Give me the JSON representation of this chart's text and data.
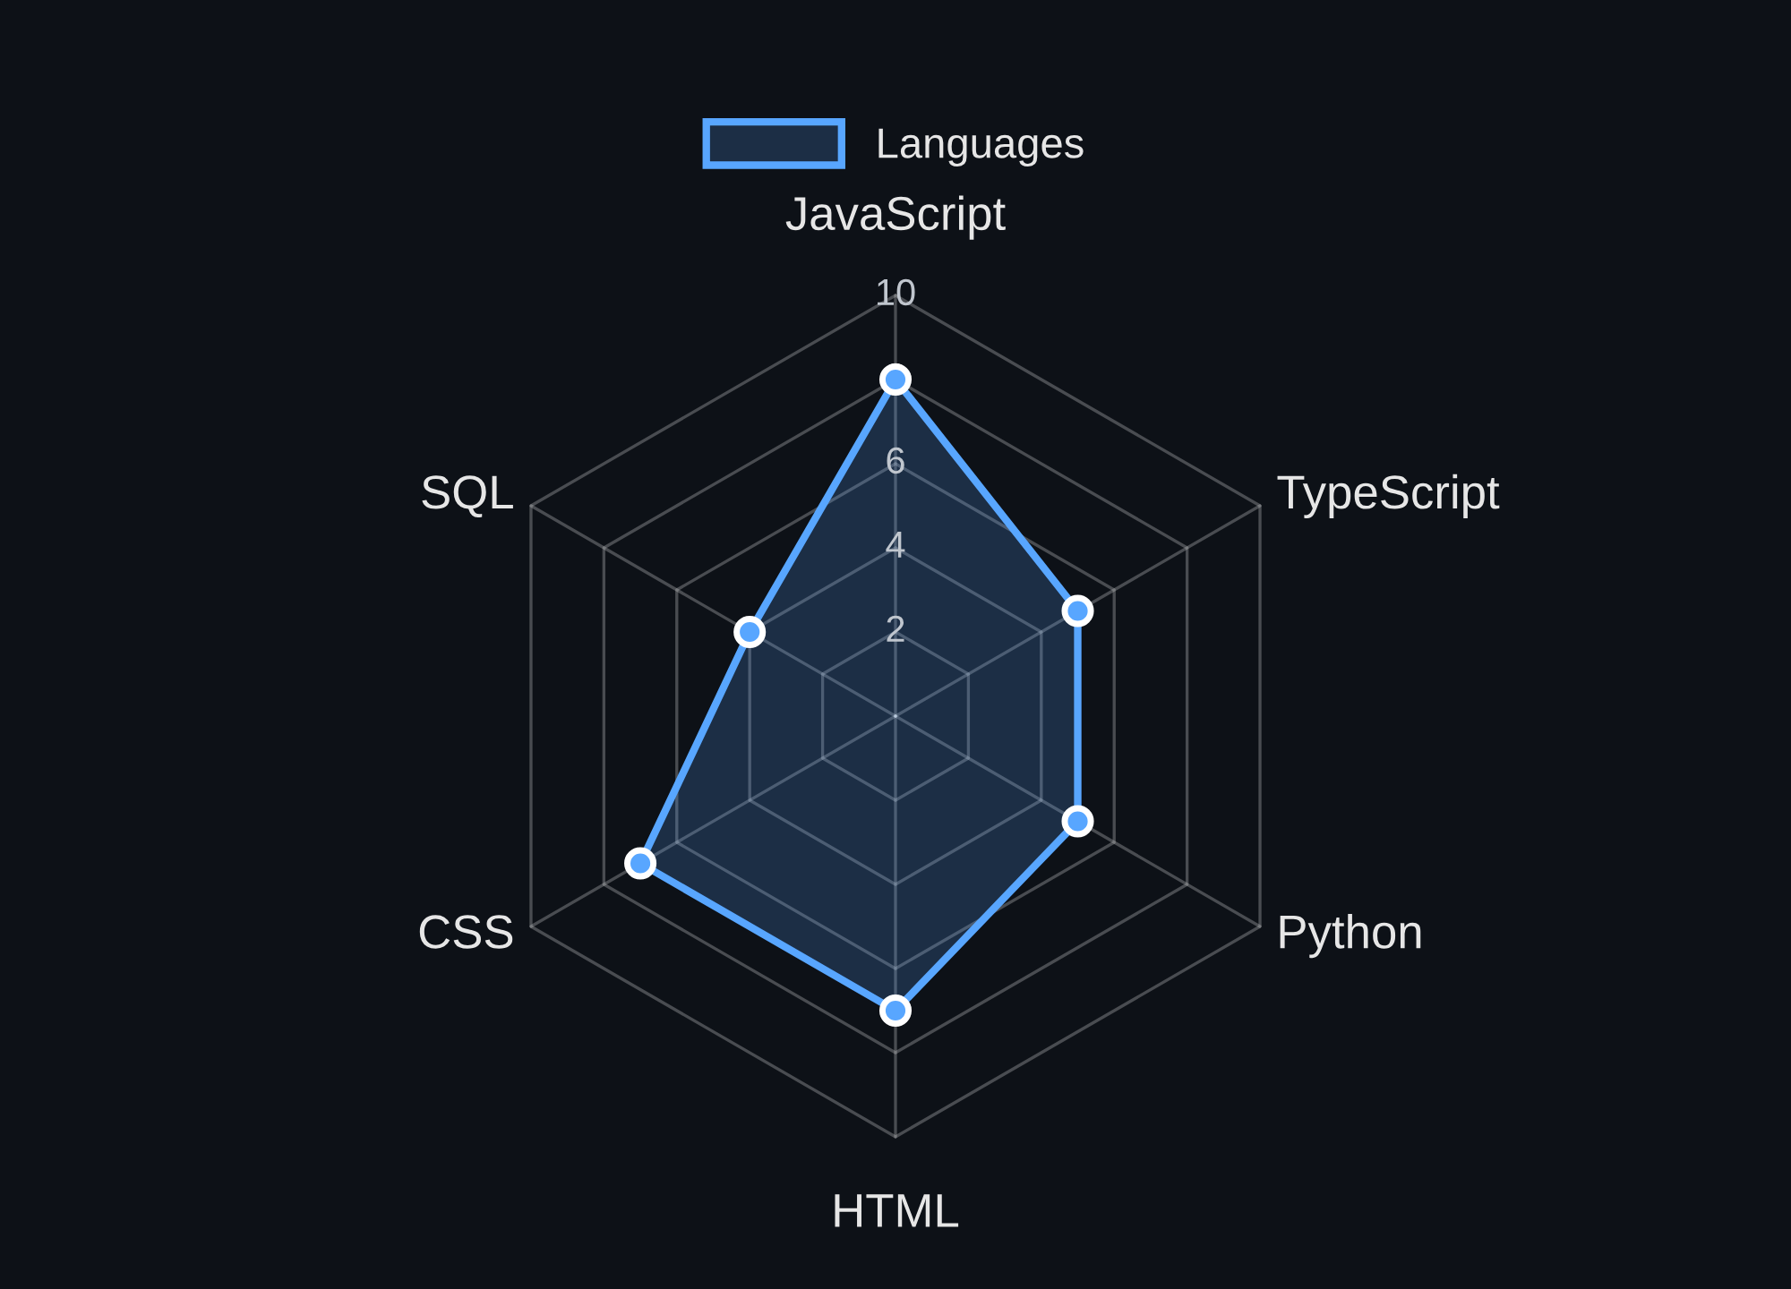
{
  "chart_data": {
    "type": "radar",
    "categories": [
      "JavaScript",
      "TypeScript",
      "Python",
      "HTML",
      "CSS",
      "SQL"
    ],
    "series": [
      {
        "name": "Languages",
        "color": "#58a6ff",
        "values": [
          8,
          5,
          5,
          7,
          7,
          4
        ]
      }
    ],
    "ylim": [
      0,
      10
    ],
    "yticks": [
      2,
      4,
      6,
      8,
      10
    ],
    "grid": true,
    "legend": "top",
    "marker": "circle",
    "line_style": "solid"
  }
}
